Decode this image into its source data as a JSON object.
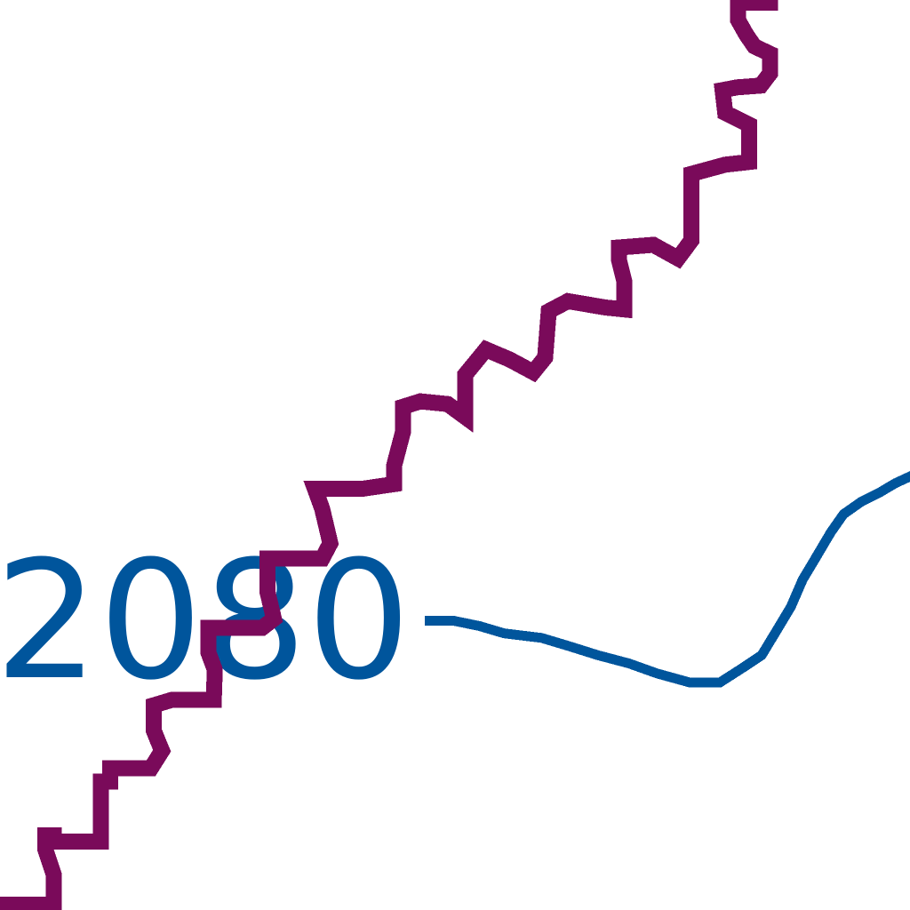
{
  "chart_data": {
    "type": "line",
    "title": "",
    "xlabel": "",
    "ylabel": "",
    "annotations": [
      {
        "text": "2080",
        "color": "#00559C"
      }
    ],
    "xlim": [
      0,
      100
    ],
    "ylim": [
      0,
      100
    ],
    "grid": false,
    "legend": "none",
    "series": [
      {
        "color": "#7A0A5A",
        "points": [
          [
            0.8,
            0.6
          ],
          [
            5.9,
            0.6
          ],
          [
            5.9,
            3.9
          ],
          [
            5.0,
            6.6
          ],
          [
            5.0,
            8.2
          ],
          [
            5.9,
            8.2
          ],
          [
            5.9,
            7.5
          ],
          [
            11.1,
            7.5
          ],
          [
            11.1,
            9.5
          ],
          [
            11.1,
            14.1
          ],
          [
            12.1,
            14.1
          ],
          [
            12.1,
            15.6
          ],
          [
            16.6,
            15.6
          ],
          [
            17.8,
            17.5
          ],
          [
            17.3,
            18.7
          ],
          [
            16.9,
            19.7
          ],
          [
            16.9,
            22.5
          ],
          [
            18.9,
            23.1
          ],
          [
            23.5,
            23.1
          ],
          [
            23.6,
            26.4
          ],
          [
            22.9,
            28.3
          ],
          [
            22.9,
            31.0
          ],
          [
            28.8,
            31.0
          ],
          [
            30.1,
            32.0
          ],
          [
            29.4,
            34.9
          ],
          [
            29.4,
            38.6
          ],
          [
            35.4,
            38.6
          ],
          [
            36.3,
            40.3
          ],
          [
            35.4,
            44.1
          ],
          [
            34.6,
            46.3
          ],
          [
            39.9,
            46.3
          ],
          [
            43.3,
            46.8
          ],
          [
            43.3,
            48.8
          ],
          [
            44.3,
            52.6
          ],
          [
            44.3,
            55.3
          ],
          [
            46.2,
            55.9
          ],
          [
            49.2,
            55.6
          ],
          [
            51.1,
            54.2
          ],
          [
            51.1,
            58.8
          ],
          [
            53.4,
            61.6
          ],
          [
            56.0,
            60.5
          ],
          [
            58.6,
            59.1
          ],
          [
            59.9,
            60.7
          ],
          [
            60.3,
            65.8
          ],
          [
            62.4,
            66.9
          ],
          [
            66.6,
            66.2
          ],
          [
            68.6,
            66.0
          ],
          [
            68.6,
            69.1
          ],
          [
            68.0,
            71.5
          ],
          [
            68.0,
            72.8
          ],
          [
            71.8,
            73.1
          ],
          [
            74.5,
            71.6
          ],
          [
            76.0,
            73.6
          ],
          [
            76.0,
            79.9
          ],
          [
            76.0,
            80.9
          ],
          [
            79.7,
            81.9
          ],
          [
            82.3,
            82.2
          ],
          [
            82.3,
            85.1
          ],
          [
            82.3,
            86.3
          ],
          [
            79.7,
            87.6
          ],
          [
            79.4,
            90.1
          ],
          [
            81.0,
            90.4
          ],
          [
            83.6,
            90.6
          ],
          [
            84.6,
            91.9
          ],
          [
            84.6,
            94.1
          ],
          [
            82.9,
            94.9
          ],
          [
            82.0,
            96.2
          ],
          [
            81.1,
            97.8
          ],
          [
            81.1,
            99.7
          ],
          [
            84.6,
            99.7
          ]
        ]
      },
      {
        "color": "#00559C",
        "points": [
          [
            47.2,
            31.8
          ],
          [
            49.8,
            31.8
          ],
          [
            52.7,
            31.2
          ],
          [
            55.4,
            30.4
          ],
          [
            59.5,
            29.9
          ],
          [
            62.5,
            29.0
          ],
          [
            65.7,
            28.0
          ],
          [
            69.1,
            27.1
          ],
          [
            72.2,
            26.0
          ],
          [
            75.8,
            25.0
          ],
          [
            79.1,
            25.0
          ],
          [
            81.6,
            26.6
          ],
          [
            83.7,
            28.0
          ],
          [
            85.4,
            30.8
          ],
          [
            86.9,
            33.3
          ],
          [
            88.2,
            36.3
          ],
          [
            89.7,
            38.8
          ],
          [
            91.3,
            41.5
          ],
          [
            92.7,
            43.5
          ],
          [
            94.7,
            44.9
          ],
          [
            96.7,
            45.9
          ],
          [
            98.4,
            46.9
          ],
          [
            99.9,
            47.6
          ]
        ]
      }
    ]
  }
}
